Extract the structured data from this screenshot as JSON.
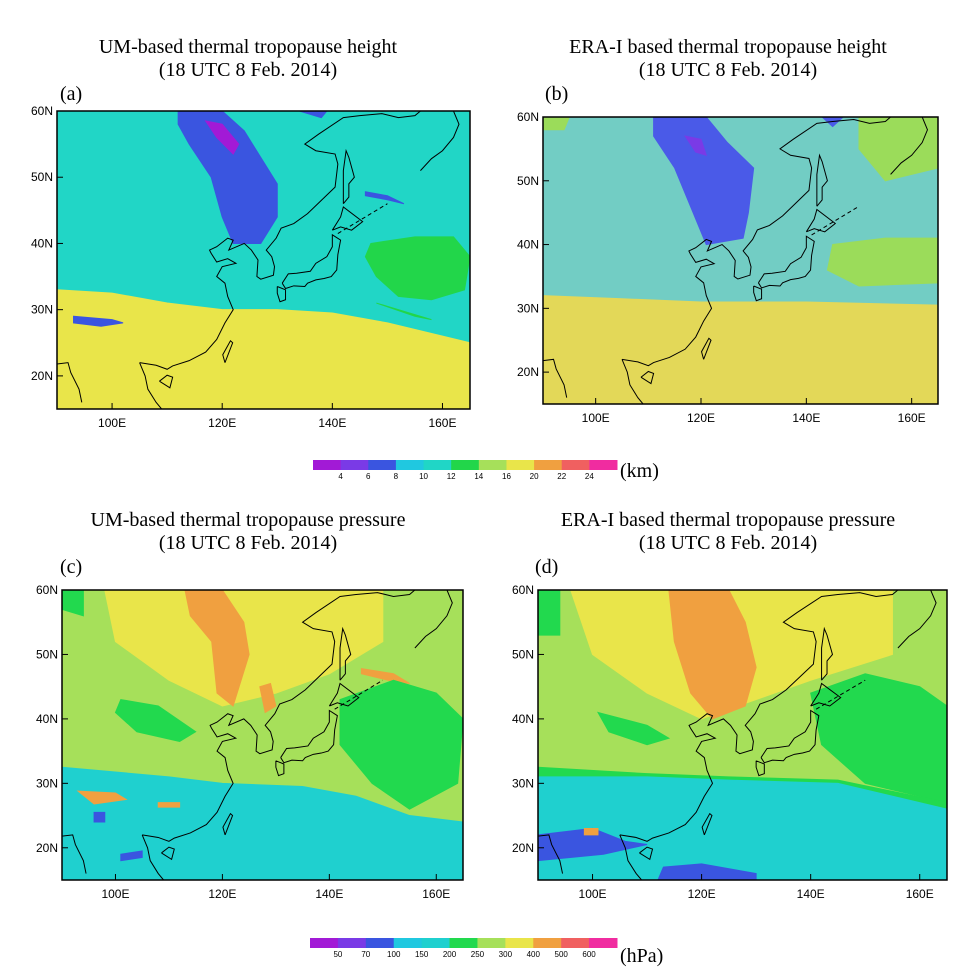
{
  "panels": [
    {
      "label": "(a)",
      "title": [
        "UM-based thermal tropopause height",
        "(18 UTC 8 Feb. 2014)"
      ],
      "xlim": [
        90,
        165
      ],
      "ylim": [
        15,
        60
      ],
      "xticks": [
        {
          "value": 100,
          "label": "100E"
        },
        {
          "value": 120,
          "label": "120E"
        },
        {
          "value": 140,
          "label": "140E"
        },
        {
          "value": 160,
          "label": "160E"
        }
      ],
      "yticks": [
        {
          "value": 20,
          "label": "20N"
        },
        {
          "value": 30,
          "label": "30N"
        },
        {
          "value": 40,
          "label": "40N"
        },
        {
          "value": 50,
          "label": "50N"
        },
        {
          "value": 60,
          "label": "60N"
        }
      ]
    },
    {
      "label": "(b)",
      "title": [
        "ERA-I based thermal tropopause height",
        "(18 UTC 8 Feb. 2014)"
      ],
      "xlim": [
        90,
        165
      ],
      "ylim": [
        15,
        60
      ],
      "xticks": [
        {
          "value": 100,
          "label": "100E"
        },
        {
          "value": 120,
          "label": "120E"
        },
        {
          "value": 140,
          "label": "140E"
        },
        {
          "value": 160,
          "label": "160E"
        }
      ],
      "yticks": [
        {
          "value": 20,
          "label": "20N"
        },
        {
          "value": 30,
          "label": "30N"
        },
        {
          "value": 40,
          "label": "40N"
        },
        {
          "value": 50,
          "label": "50N"
        },
        {
          "value": 60,
          "label": "60N"
        }
      ]
    },
    {
      "label": "(c)",
      "title": [
        "UM-based thermal tropopause pressure",
        "(18 UTC 8 Feb. 2014)"
      ],
      "xlim": [
        90,
        165
      ],
      "ylim": [
        15,
        60
      ],
      "xticks": [
        {
          "value": 100,
          "label": "100E"
        },
        {
          "value": 120,
          "label": "120E"
        },
        {
          "value": 140,
          "label": "140E"
        },
        {
          "value": 160,
          "label": "160E"
        }
      ],
      "yticks": [
        {
          "value": 20,
          "label": "20N"
        },
        {
          "value": 30,
          "label": "30N"
        },
        {
          "value": 40,
          "label": "40N"
        },
        {
          "value": 50,
          "label": "50N"
        },
        {
          "value": 60,
          "label": "60N"
        }
      ]
    },
    {
      "label": "(d)",
      "title": [
        "ERA-I based thermal tropopause pressure",
        "(18 UTC 8 Feb. 2014)"
      ],
      "xlim": [
        90,
        165
      ],
      "ylim": [
        15,
        60
      ],
      "xticks": [
        {
          "value": 100,
          "label": "100E"
        },
        {
          "value": 120,
          "label": "120E"
        },
        {
          "value": 140,
          "label": "140E"
        },
        {
          "value": 160,
          "label": "160E"
        }
      ],
      "yticks": [
        {
          "value": 20,
          "label": "20N"
        },
        {
          "value": 30,
          "label": "30N"
        },
        {
          "value": 40,
          "label": "40N"
        },
        {
          "value": 50,
          "label": "50N"
        },
        {
          "value": 60,
          "label": "60N"
        }
      ]
    }
  ],
  "colorbars": [
    {
      "ticks": [
        4,
        6,
        8,
        10,
        12,
        14,
        16,
        20,
        22,
        24
      ],
      "unit": "(km)",
      "colors": [
        "#a21ad6",
        "#7a3ae6",
        "#3a55e0",
        "#20c8e0",
        "#20d6c6",
        "#22d64a",
        "#a6e05a",
        "#e9e54a",
        "#f0a040",
        "#f06060",
        "#f02ca0"
      ]
    },
    {
      "ticks": [
        50,
        70,
        100,
        150,
        200,
        250,
        300,
        400,
        500,
        600
      ],
      "unit": "(hPa)",
      "colors": [
        "#a21ad6",
        "#7a3ae6",
        "#3a55e0",
        "#20c8e0",
        "#1fd0cf",
        "#22d94e",
        "#a6e05a",
        "#e9e54a",
        "#f0a040",
        "#f06060",
        "#f02ca0"
      ]
    }
  ]
}
